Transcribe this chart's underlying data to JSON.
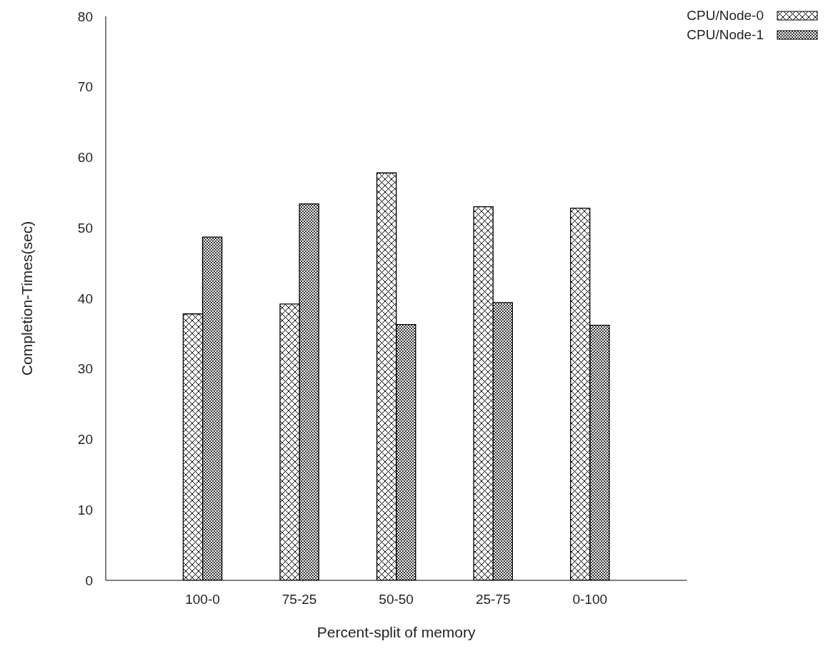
{
  "chart_data": {
    "type": "bar",
    "xlabel": "Percent-split of memory",
    "ylabel": "Completion-Times(sec)",
    "categories": [
      "100-0",
      "75-25",
      "50-50",
      "25-75",
      "0-100"
    ],
    "series": [
      {
        "name": "CPU/Node-0",
        "color": "#000000",
        "values": [
          37.8,
          39.2,
          57.8,
          53.0,
          52.8
        ]
      },
      {
        "name": "CPU/Node-1",
        "color": "#000000",
        "values": [
          48.7,
          53.4,
          36.3,
          39.4,
          36.2
        ]
      }
    ],
    "ylim": [
      0,
      80
    ],
    "yticks": [
      0,
      10,
      20,
      30,
      40,
      50,
      60,
      70,
      80
    ],
    "grid": false,
    "legend": "top right"
  }
}
